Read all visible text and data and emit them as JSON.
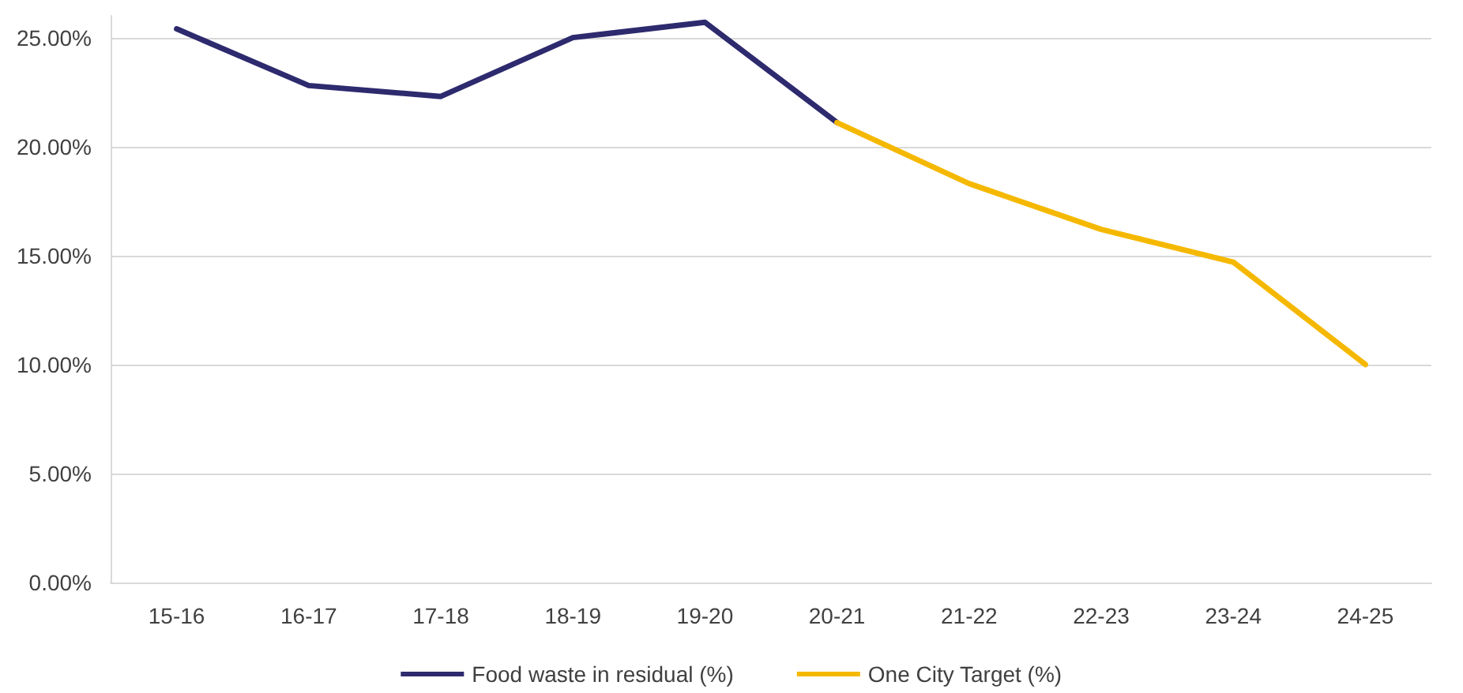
{
  "chart_data": {
    "type": "line",
    "categories": [
      "15-16",
      "16-17",
      "17-18",
      "18-19",
      "19-20",
      "20-21",
      "21-22",
      "22-23",
      "23-24",
      "24-25"
    ],
    "series": [
      {
        "name": "Food waste in residual (%)",
        "color": "#2e2a6e",
        "values": [
          25.4,
          22.8,
          22.3,
          25.0,
          25.7,
          21.1,
          null,
          null,
          null,
          null
        ]
      },
      {
        "name": "One City Target (%)",
        "color": "#f5b800",
        "values": [
          null,
          null,
          null,
          null,
          null,
          21.1,
          18.3,
          16.2,
          14.7,
          10.0
        ]
      }
    ],
    "ylim": [
      0,
      26
    ],
    "yticks": [
      {
        "value": 0,
        "label": "0.00%"
      },
      {
        "value": 5,
        "label": "5.00%"
      },
      {
        "value": 10,
        "label": "10.00%"
      },
      {
        "value": 15,
        "label": "15.00%"
      },
      {
        "value": 20,
        "label": "20.00%"
      },
      {
        "value": 25,
        "label": "25.00%"
      }
    ],
    "grid": "y",
    "legend": "bottom",
    "marker": "none",
    "line_style": "solid"
  }
}
